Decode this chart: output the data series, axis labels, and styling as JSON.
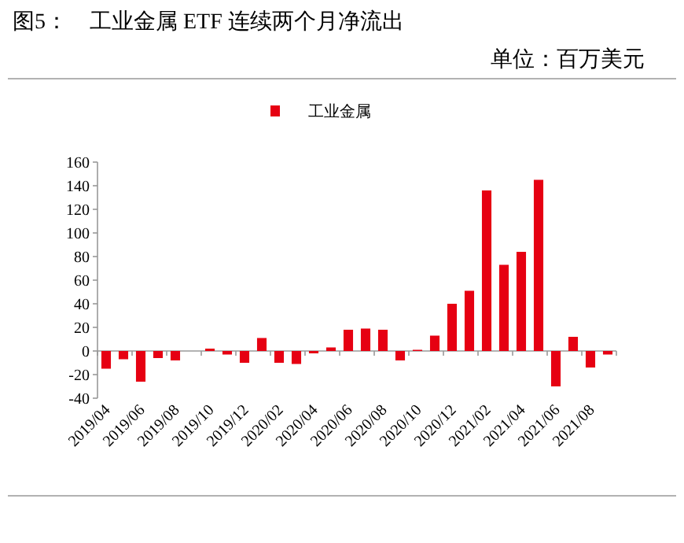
{
  "chart_data": {
    "type": "bar",
    "title": "图5：　工业金属 ETF 连续两个月净流出",
    "subtitle": "单位：百万美元",
    "categories": [
      "2019/04",
      null,
      "2019/06",
      null,
      "2019/08",
      null,
      "2019/10",
      null,
      "2019/12",
      null,
      "2020/02",
      null,
      "2020/04",
      null,
      "2020/06",
      null,
      "2020/08",
      null,
      "2020/10",
      null,
      "2020/12",
      null,
      "2021/02",
      null,
      "2021/04",
      null,
      "2021/06",
      null,
      "2021/08",
      null
    ],
    "series": [
      {
        "name": "工业金属",
        "color": "#e60012",
        "values": [
          -15,
          -7,
          -26,
          -6,
          -8,
          0,
          2,
          -3,
          -10,
          11,
          -10,
          -11,
          -2,
          3,
          18,
          19,
          18,
          -8,
          1,
          13,
          40,
          51,
          136,
          73,
          84,
          145,
          -30,
          12,
          -14,
          -3
        ]
      }
    ],
    "ylim": [
      -40,
      160
    ],
    "yticks": [
      -40,
      -20,
      0,
      20,
      40,
      60,
      80,
      100,
      120,
      140,
      160
    ],
    "legend": "top"
  }
}
